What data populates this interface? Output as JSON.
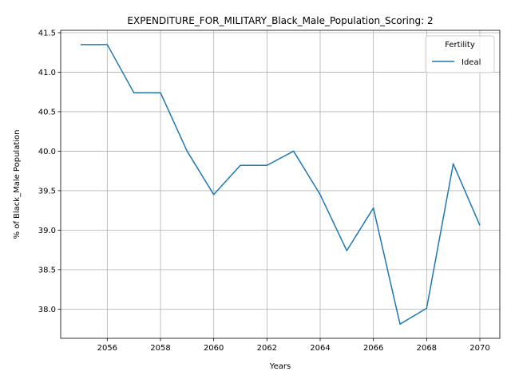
{
  "chart_data": {
    "type": "line",
    "title": "EXPENDITURE_FOR_MILITARY_Black_Male_Population_Scoring: 2",
    "xlabel": "Years",
    "ylabel": "% of Black_Male Population",
    "xlim": [
      2054.25,
      2070.75
    ],
    "ylim": [
      37.63,
      41.53
    ],
    "xticks": [
      2056,
      2058,
      2060,
      2062,
      2064,
      2066,
      2068,
      2070
    ],
    "yticks": [
      38.0,
      38.5,
      39.0,
      39.5,
      40.0,
      40.5,
      41.0,
      41.5
    ],
    "grid": true,
    "legend": {
      "title": "Fertility",
      "placement": "top-right"
    },
    "x": [
      2055,
      2056,
      2057,
      2058,
      2059,
      2060,
      2061,
      2062,
      2063,
      2064,
      2065,
      2066,
      2067,
      2068,
      2069,
      2070
    ],
    "series": [
      {
        "name": "Ideal",
        "color": "#1f77b4",
        "values": [
          41.35,
          41.35,
          40.74,
          40.74,
          40.0,
          39.45,
          39.82,
          39.82,
          40.0,
          39.45,
          38.74,
          39.28,
          37.81,
          38.01,
          39.84,
          39.06
        ]
      }
    ]
  }
}
